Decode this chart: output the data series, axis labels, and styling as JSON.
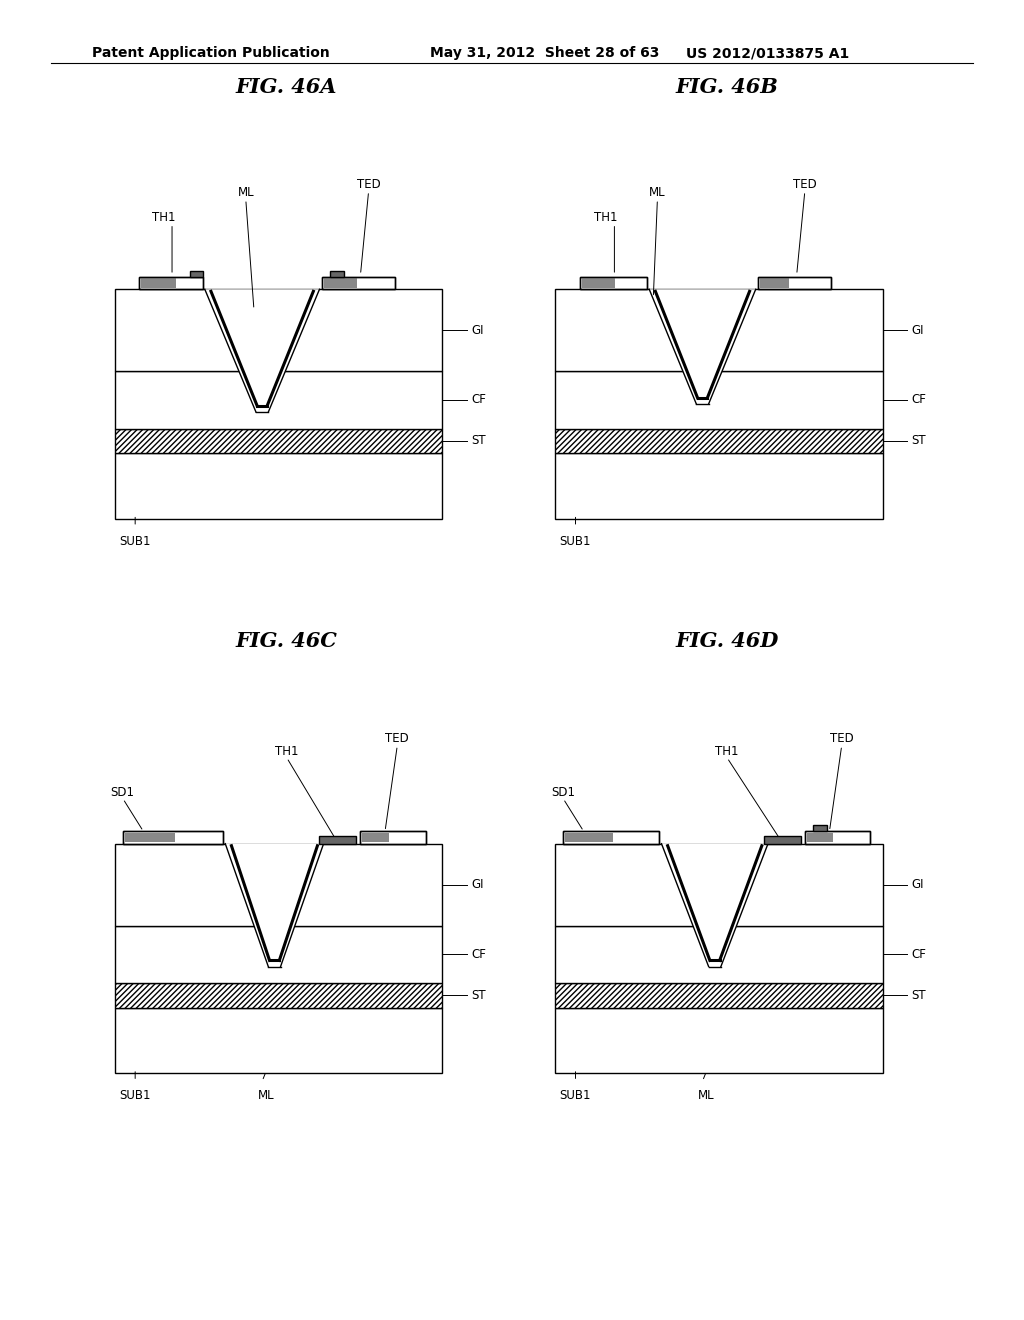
{
  "bg_color": "#ffffff",
  "header_left": "Patent Application Publication",
  "header_mid": "May 31, 2012  Sheet 28 of 63",
  "header_right": "US 2012/0133875 A1",
  "line_color": "#000000",
  "title_fontsize": 15,
  "label_fontsize": 8.5,
  "header_fontsize": 10
}
